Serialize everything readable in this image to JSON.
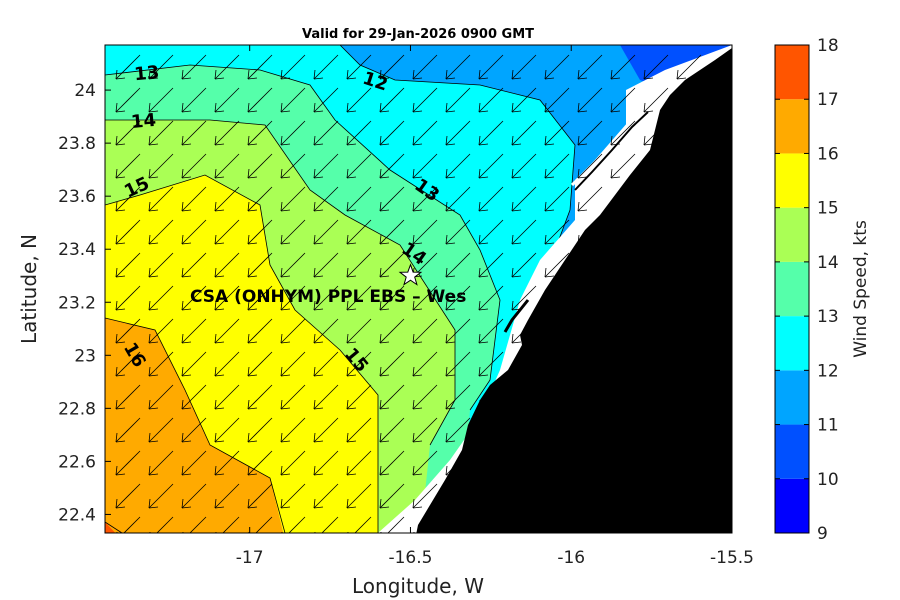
{
  "title": "Valid for 29-Jan-2026 0900 GMT",
  "site_label": "CSA (ONHYM) PPL EBS  – Wes",
  "site_marker": {
    "symbol": "star-icon",
    "lon": -16.5,
    "lat": 23.3
  },
  "colors": {
    "land": "#000000",
    "background": "#ffffff",
    "frame": "#000000",
    "contour_line": "#000000",
    "arrow": "#000000"
  },
  "chart_data": {
    "type": "heatmap",
    "title": "Valid for 29-Jan-2026 0900 GMT",
    "xlabel": "Longitude, W",
    "ylabel": "Latitude, N",
    "xlim": [
      -17.45,
      -15.5
    ],
    "ylim": [
      22.33,
      24.17
    ],
    "x_ticks": [
      -17,
      -16.5,
      -16,
      -15.5
    ],
    "y_ticks": [
      22.4,
      22.6,
      22.8,
      23,
      23.2,
      23.4,
      23.6,
      23.8,
      24
    ],
    "y_tick_labels": [
      "22.4",
      "22.6",
      "22.8",
      "23",
      "23.2",
      "23.4",
      "23.6",
      "23.8",
      "24"
    ],
    "x_tick_labels": [
      "-17",
      "-16.5",
      "-16",
      "-15.5"
    ],
    "colorbar": {
      "label": "Wind Speed, kts",
      "min": 9,
      "max": 18,
      "ticks": [
        9,
        10,
        11,
        12,
        13,
        14,
        15,
        16,
        17,
        18
      ],
      "bands": [
        {
          "from": 9,
          "to": 10,
          "color": "#0000ff"
        },
        {
          "from": 10,
          "to": 11,
          "color": "#0050ff"
        },
        {
          "from": 11,
          "to": 12,
          "color": "#00a5ff"
        },
        {
          "from": 12,
          "to": 13,
          "color": "#00ffff"
        },
        {
          "from": 13,
          "to": 14,
          "color": "#55ffaa"
        },
        {
          "from": 14,
          "to": 15,
          "color": "#aaff55"
        },
        {
          "from": 15,
          "to": 16,
          "color": "#ffff00"
        },
        {
          "from": 16,
          "to": 17,
          "color": "#ffaa00"
        },
        {
          "from": 17,
          "to": 18,
          "color": "#ff5500"
        }
      ]
    },
    "contour_labels": [
      {
        "text": "12",
        "lon": -16.61,
        "lat": 24.03,
        "rotation": 18
      },
      {
        "text": "13",
        "lon": -17.32,
        "lat": 24.06,
        "rotation": -5
      },
      {
        "text": "13",
        "lon": -16.45,
        "lat": 23.62,
        "rotation": 35
      },
      {
        "text": "14",
        "lon": -17.33,
        "lat": 23.88,
        "rotation": -5
      },
      {
        "text": "14",
        "lon": -16.49,
        "lat": 23.38,
        "rotation": 35
      },
      {
        "text": "15",
        "lon": -17.35,
        "lat": 23.63,
        "rotation": -25
      },
      {
        "text": "15",
        "lon": -16.67,
        "lat": 22.98,
        "rotation": 50
      },
      {
        "text": "16",
        "lon": -17.36,
        "lat": 23.0,
        "rotation": 60
      }
    ],
    "wind_direction": "from NE (vectors pointing SW)"
  }
}
